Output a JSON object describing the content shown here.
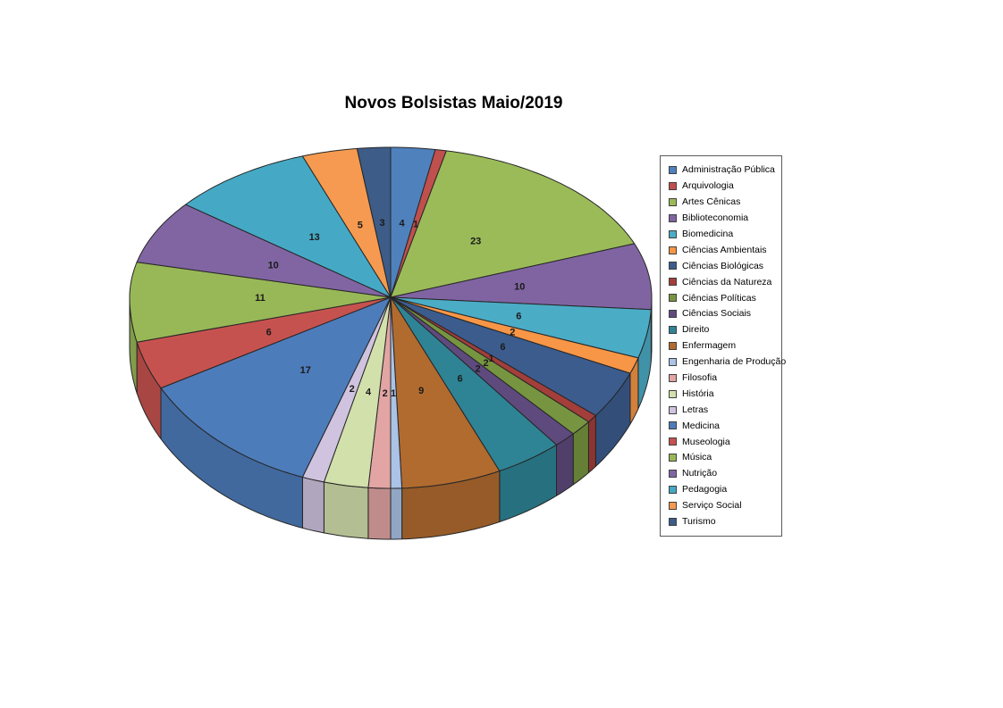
{
  "title": "Novos Bolsistas Maio/2019",
  "chart_data": {
    "type": "pie",
    "style": "3d",
    "title": "Novos Bolsistas Maio/2019",
    "direction": "clockwise",
    "start_angle_deg": 0,
    "data_labels": "values",
    "legend_position": "right",
    "total": 146,
    "categories": [
      "Administração Pública",
      "Arquivologia",
      "Artes Cênicas",
      "Biblioteconomia",
      "Biomedicina",
      "Ciências Ambientais",
      "Ciências Biológicas",
      "Ciências da Natureza",
      "Ciências Políticas",
      "Ciências Sociais",
      "Direito",
      "Enfermagem",
      "Engenharia de Produção",
      "Filosofia",
      "História",
      "Letras",
      "Medicina",
      "Museologia",
      "Música",
      "Nutrição",
      "Pedagogia",
      "Serviço Social",
      "Turismo"
    ],
    "values": [
      4,
      1,
      23,
      10,
      6,
      2,
      6,
      1,
      2,
      2,
      6,
      9,
      1,
      2,
      4,
      2,
      17,
      6,
      11,
      10,
      13,
      5,
      3
    ],
    "colors": [
      "#4F81BD",
      "#C0504D",
      "#9BBB59",
      "#8064A2",
      "#4BACC6",
      "#F79646",
      "#3C5C8E",
      "#A33E3B",
      "#779540",
      "#5F4A7E",
      "#2E8495",
      "#B16B2F",
      "#AAC3E7",
      "#E2A5A3",
      "#D2E0AC",
      "#CFC3DF",
      "#4D7CBA",
      "#C6524F",
      "#98B857",
      "#8165A3",
      "#45A9C5",
      "#F59A50",
      "#3D5C88"
    ],
    "outline_color": "#262626",
    "label_color": "#1a1a1a"
  }
}
